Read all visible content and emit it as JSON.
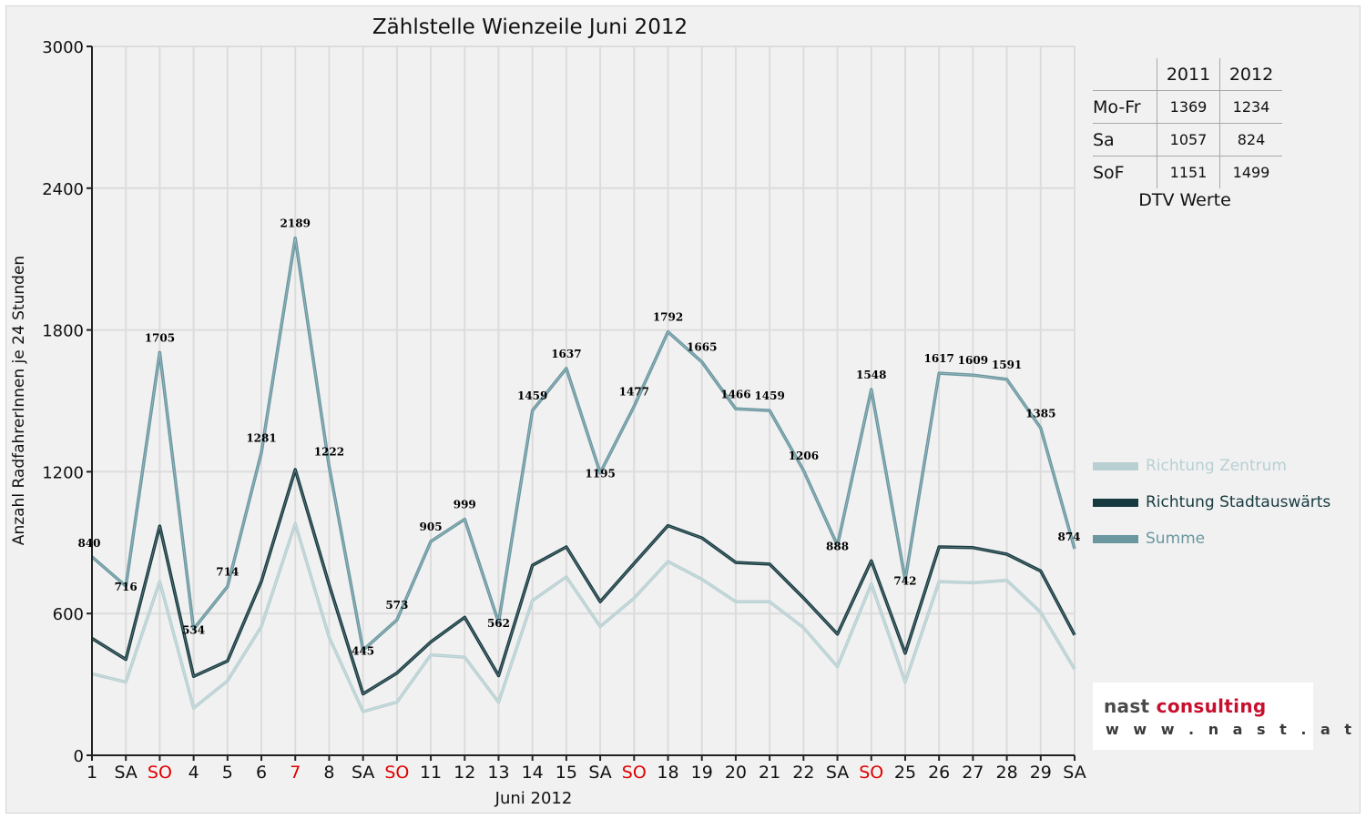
{
  "chart_data": {
    "type": "line",
    "title": "Zählstelle Wienzeile Juni 2012",
    "xlabel": "Juni 2012",
    "ylabel": "Anzahl RadfahrerInnen je 24 Stunden",
    "ylim": [
      0,
      3000
    ],
    "yticks": [
      0,
      600,
      1200,
      1800,
      2400,
      3000
    ],
    "grid": true,
    "legend_position": "right",
    "categories": [
      "1",
      "SA",
      "SO",
      "4",
      "5",
      "6",
      "7",
      "8",
      "SA",
      "SO",
      "11",
      "12",
      "13",
      "14",
      "15",
      "SA",
      "SO",
      "18",
      "19",
      "20",
      "21",
      "22",
      "SA",
      "SO",
      "25",
      "26",
      "27",
      "28",
      "29",
      "SA"
    ],
    "red_categories": [
      2,
      6,
      9,
      16,
      23
    ],
    "series": [
      {
        "name": "Richtung Zentrum",
        "color": "#b8d0d2",
        "values": [
          345,
          310,
          735,
          200,
          315,
          545,
          980,
          500,
          185,
          225,
          425,
          415,
          225,
          655,
          755,
          545,
          665,
          820,
          745,
          650,
          650,
          540,
          375,
          725,
          310,
          735,
          730,
          740,
          605,
          365
        ]
      },
      {
        "name": "Richtung Stadtauswärts",
        "color": "#163a40",
        "values": [
          495,
          406,
          970,
          334,
          399,
          736,
          1209,
          722,
          260,
          348,
          480,
          584,
          337,
          804,
          882,
          650,
          812,
          972,
          920,
          816,
          809,
          666,
          513,
          823,
          432,
          882,
          879,
          851,
          780,
          509
        ]
      },
      {
        "name": "Summe",
        "color": "#6a97a0",
        "values": [
          840,
          716,
          1705,
          534,
          714,
          1281,
          2189,
          1222,
          445,
          573,
          905,
          999,
          562,
          1459,
          1637,
          1195,
          1477,
          1792,
          1665,
          1466,
          1459,
          1206,
          888,
          1548,
          742,
          1617,
          1609,
          1591,
          1385,
          874
        ]
      }
    ],
    "labels": [
      "840",
      "716",
      "1705",
      "534",
      "714",
      "1281",
      "2189",
      "1222",
      "445",
      "573",
      "905",
      "999",
      "562",
      "1459",
      "1637",
      "1195",
      "1477",
      "1792",
      "1665",
      "1466",
      "1459",
      "1206",
      "888",
      "1548",
      "742",
      "1617",
      "1609",
      "1591",
      "1385",
      "874"
    ]
  },
  "dtv_table": {
    "headers": [
      "2011",
      "2012"
    ],
    "rows": [
      {
        "label": "Mo-Fr",
        "v2011": "1369",
        "v2012": "1234"
      },
      {
        "label": "Sa",
        "v2011": "1057",
        "v2012": "824"
      },
      {
        "label": "SoF",
        "v2011": "1151",
        "v2012": "1499"
      }
    ],
    "caption": "DTV Werte"
  },
  "logo": {
    "name_dark": "nast",
    "name_red": "consulting",
    "url": "w w w . n a s t . a t"
  },
  "colors": {
    "background": "#f1f1f1",
    "grid": "#dcdcdc",
    "axis": "#222222",
    "weekend": "#e00000"
  }
}
